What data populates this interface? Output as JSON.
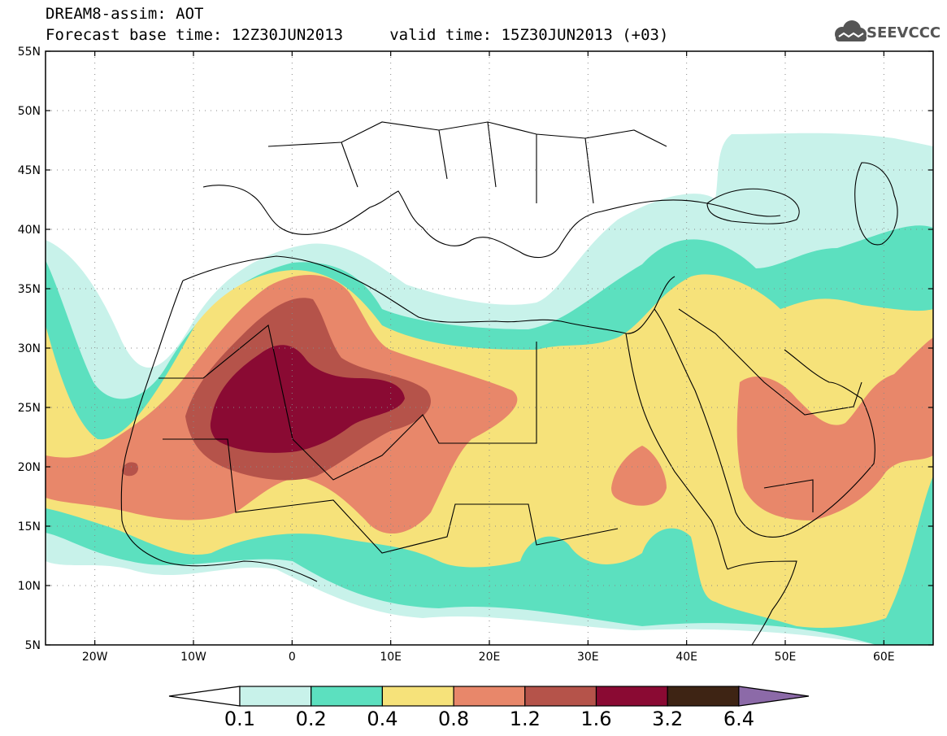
{
  "header": {
    "title_line1": "DREAM8-assim: AOT",
    "title_line2": "Forecast base time: 12Z30JUN2013     valid time: 15Z30JUN2013 (+03)",
    "logo_text": "SEEVCCC"
  },
  "map": {
    "projection": "lat-lon",
    "lon_range": [
      -25,
      65
    ],
    "lat_range": [
      5,
      55
    ],
    "lat_labels": [
      "55N",
      "50N",
      "45N",
      "40N",
      "35N",
      "30N",
      "25N",
      "20N",
      "15N",
      "10N",
      "5N"
    ],
    "lat_values": [
      55,
      50,
      45,
      40,
      35,
      30,
      25,
      20,
      15,
      10,
      5
    ],
    "lon_labels": [
      "20W",
      "10W",
      "0",
      "10E",
      "20E",
      "30E",
      "40E",
      "50E",
      "60E"
    ],
    "lon_values": [
      -20,
      -10,
      0,
      10,
      20,
      30,
      40,
      50,
      60
    ],
    "grid": "dotted"
  },
  "colorbar": {
    "labels": [
      "0.1",
      "0.2",
      "0.4",
      "0.8",
      "1.2",
      "1.6",
      "3.2",
      "6.4"
    ],
    "colors": [
      "#c8f2ea",
      "#5ce0bf",
      "#f6e27a",
      "#e8876a",
      "#b5534a",
      "#8a0a33",
      "#3e2414",
      "#8c6aa8"
    ]
  },
  "fill_colors": {
    "l1": "#c8f2ea",
    "l2": "#5ce0bf",
    "l3": "#f6e27a",
    "l4": "#e8876a",
    "l5": "#b5534a",
    "l6": "#8a0a33",
    "land_line": "#000000",
    "grid": "#888888"
  }
}
